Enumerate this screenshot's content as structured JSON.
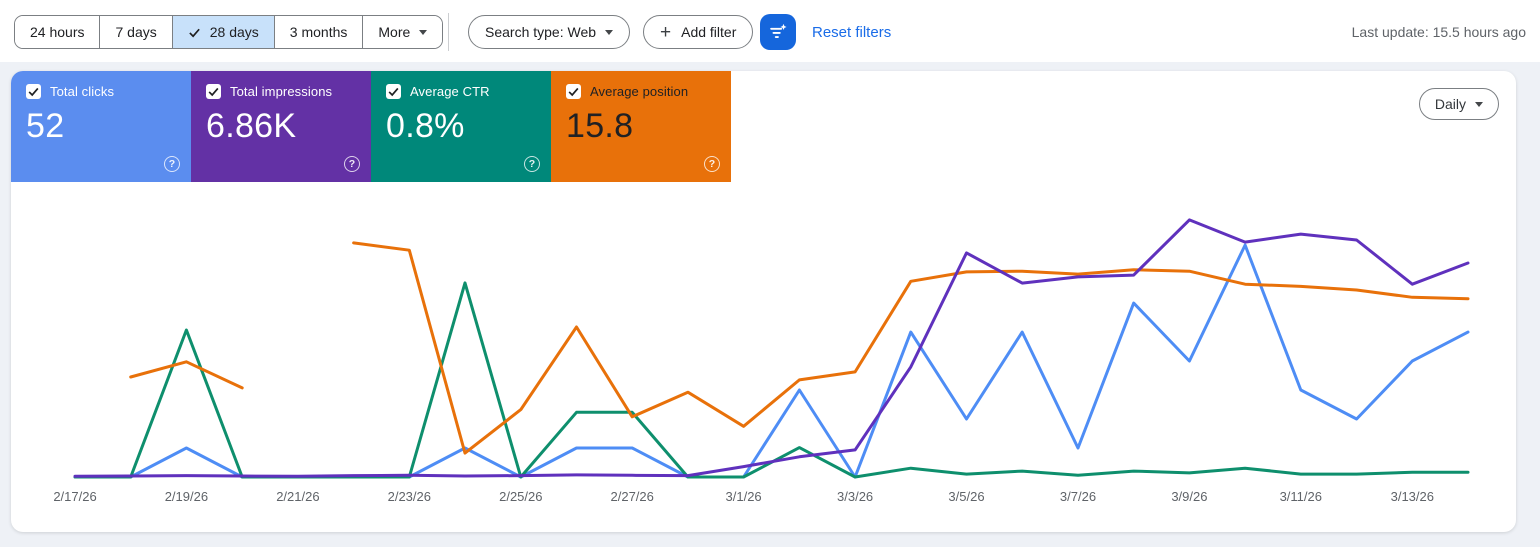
{
  "toolbar": {
    "date_ranges": [
      {
        "label": "24 hours",
        "selected": false
      },
      {
        "label": "7 days",
        "selected": false
      },
      {
        "label": "28 days",
        "selected": true
      },
      {
        "label": "3 months",
        "selected": false
      },
      {
        "label": "More",
        "selected": false,
        "dropdown": true
      }
    ],
    "search_type_label": "Search type: Web",
    "add_filter_label": "Add filter",
    "reset_filters_label": "Reset filters",
    "last_update": "Last update: 15.5 hours ago"
  },
  "metric_cards": [
    {
      "label": "Total clicks",
      "value": "52",
      "checked": true,
      "bg": "#5b8def",
      "text": "#ffffff"
    },
    {
      "label": "Total impressions",
      "value": "6.86K",
      "checked": true,
      "bg": "#6331a5",
      "text": "#ffffff"
    },
    {
      "label": "Average CTR",
      "value": "0.8%",
      "checked": true,
      "bg": "#00887a",
      "text": "#ffffff"
    },
    {
      "label": "Average position",
      "value": "15.8",
      "checked": true,
      "bg": "#e8710a",
      "text": "#202124"
    }
  ],
  "granularity_label": "Daily",
  "chart_data": {
    "type": "line",
    "grid": false,
    "legend_position": "none",
    "x": [
      "2/17/26",
      "2/18/26",
      "2/19/26",
      "2/20/26",
      "2/21/26",
      "2/22/26",
      "2/23/26",
      "2/24/26",
      "2/25/26",
      "2/26/26",
      "2/27/26",
      "2/28/26",
      "3/1/26",
      "3/2/26",
      "3/3/26",
      "3/4/26",
      "3/5/26",
      "3/6/26",
      "3/7/26",
      "3/8/26",
      "3/9/26",
      "3/10/26",
      "3/11/26",
      "3/12/26",
      "3/13/26",
      "3/14/26"
    ],
    "x_tick_every": 2,
    "x_tick_labels": [
      "2/17/26",
      "2/19/26",
      "2/21/26",
      "2/23/26",
      "2/25/26",
      "2/27/26",
      "3/1/26",
      "3/3/26",
      "3/5/26",
      "3/7/26",
      "3/9/26",
      "3/11/26",
      "3/13/26"
    ],
    "series": [
      {
        "name": "Total clicks",
        "color": "#4e8df5",
        "axis_min": 0,
        "axis_max": 9.9,
        "inverted": false,
        "values": [
          0,
          0,
          1,
          0,
          0,
          0,
          0,
          1,
          0,
          1,
          1,
          0,
          0,
          3,
          0,
          5,
          2,
          5,
          1,
          6,
          4,
          8,
          3,
          2,
          4,
          5
        ]
      },
      {
        "name": "Average CTR (%)",
        "color": "#0e8f6d",
        "axis_min": 0,
        "axis_max": 48.8,
        "inverted": false,
        "values": [
          0,
          0,
          25,
          0,
          0,
          0,
          0,
          33,
          0,
          11,
          11,
          0,
          0,
          5,
          0,
          1.5,
          0.5,
          1,
          0.3,
          1,
          0.7,
          1.5,
          0.5,
          0.5,
          0.8,
          0.8
        ]
      },
      {
        "name": "Average position",
        "color": "#e8710a",
        "axis_min": 3.7,
        "axis_max": 43.3,
        "inverted": true,
        "values": [
          null,
          29.5,
          27.4,
          31,
          null,
          11,
          12,
          40,
          34,
          22.6,
          35,
          31.6,
          36.3,
          29.9,
          28.8,
          16.3,
          15,
          14.9,
          15.3,
          14.7,
          14.9,
          16.7,
          17,
          17.5,
          18.5,
          18.7
        ]
      },
      {
        "name": "Total impressions",
        "color": "#5f31bd",
        "axis_min": 0,
        "axis_max": 826,
        "inverted": false,
        "values": [
          2,
          3,
          4,
          3,
          2,
          4,
          5,
          3,
          4,
          6,
          5,
          4,
          30,
          58,
          78,
          317,
          645,
          558,
          576,
          581,
          740,
          676,
          699,
          682,
          555,
          616
        ]
      }
    ]
  }
}
